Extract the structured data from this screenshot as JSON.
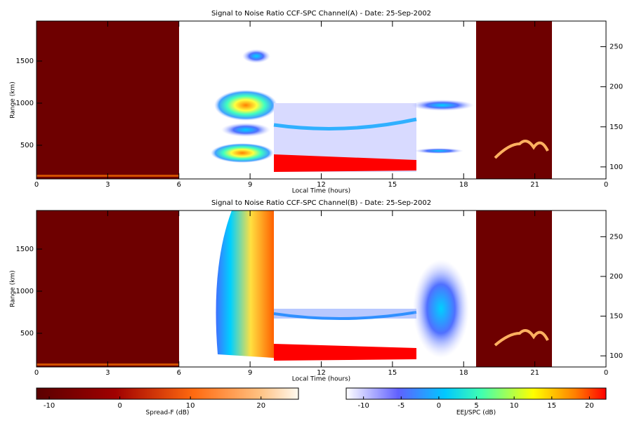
{
  "chart_data": [
    {
      "type": "heatmap",
      "title": "Signal to Noise Ratio CCF-SPC Channel(A) - Date: 25-Sep-2002",
      "x_label": "Local Time (hours)",
      "y_label": "Range (km)",
      "xlim": [
        0,
        24
      ],
      "xticks": [
        0,
        3,
        6,
        9,
        12,
        15,
        18,
        21,
        {
          "value": 24,
          "label": "0"
        }
      ],
      "ylim": [
        100,
        1975
      ],
      "yticks": [
        500,
        1000,
        1500
      ],
      "y2lim": [
        85,
        282
      ],
      "y2ticks": [
        100,
        150,
        200,
        250
      ]
    },
    {
      "type": "heatmap",
      "title": "Signal to Noise Ratio CCF-SPC Channel(B) - Date: 25-Sep-2002",
      "x_label": "Local Time (hours)",
      "y_label": "Range (km)",
      "xlim": [
        0,
        24
      ],
      "xticks": [
        0,
        3,
        6,
        9,
        12,
        15,
        18,
        21,
        {
          "value": 24,
          "label": "0"
        }
      ],
      "ylim": [
        100,
        1958
      ],
      "yticks": [
        500,
        1000,
        1500
      ],
      "y2lim": [
        86,
        283
      ],
      "y2ticks": [
        100,
        150,
        200,
        250
      ]
    }
  ],
  "colorbars": [
    {
      "label": "Spread-F (dB)",
      "lim": [
        -11.8,
        25.3
      ],
      "ticks": [
        -10,
        0,
        10,
        20
      ]
    },
    {
      "label": "EEJ/SPC (dB)",
      "lim": [
        -12.3,
        22.2
      ],
      "ticks": [
        -10,
        -5,
        0,
        5,
        10,
        15,
        20
      ]
    }
  ]
}
